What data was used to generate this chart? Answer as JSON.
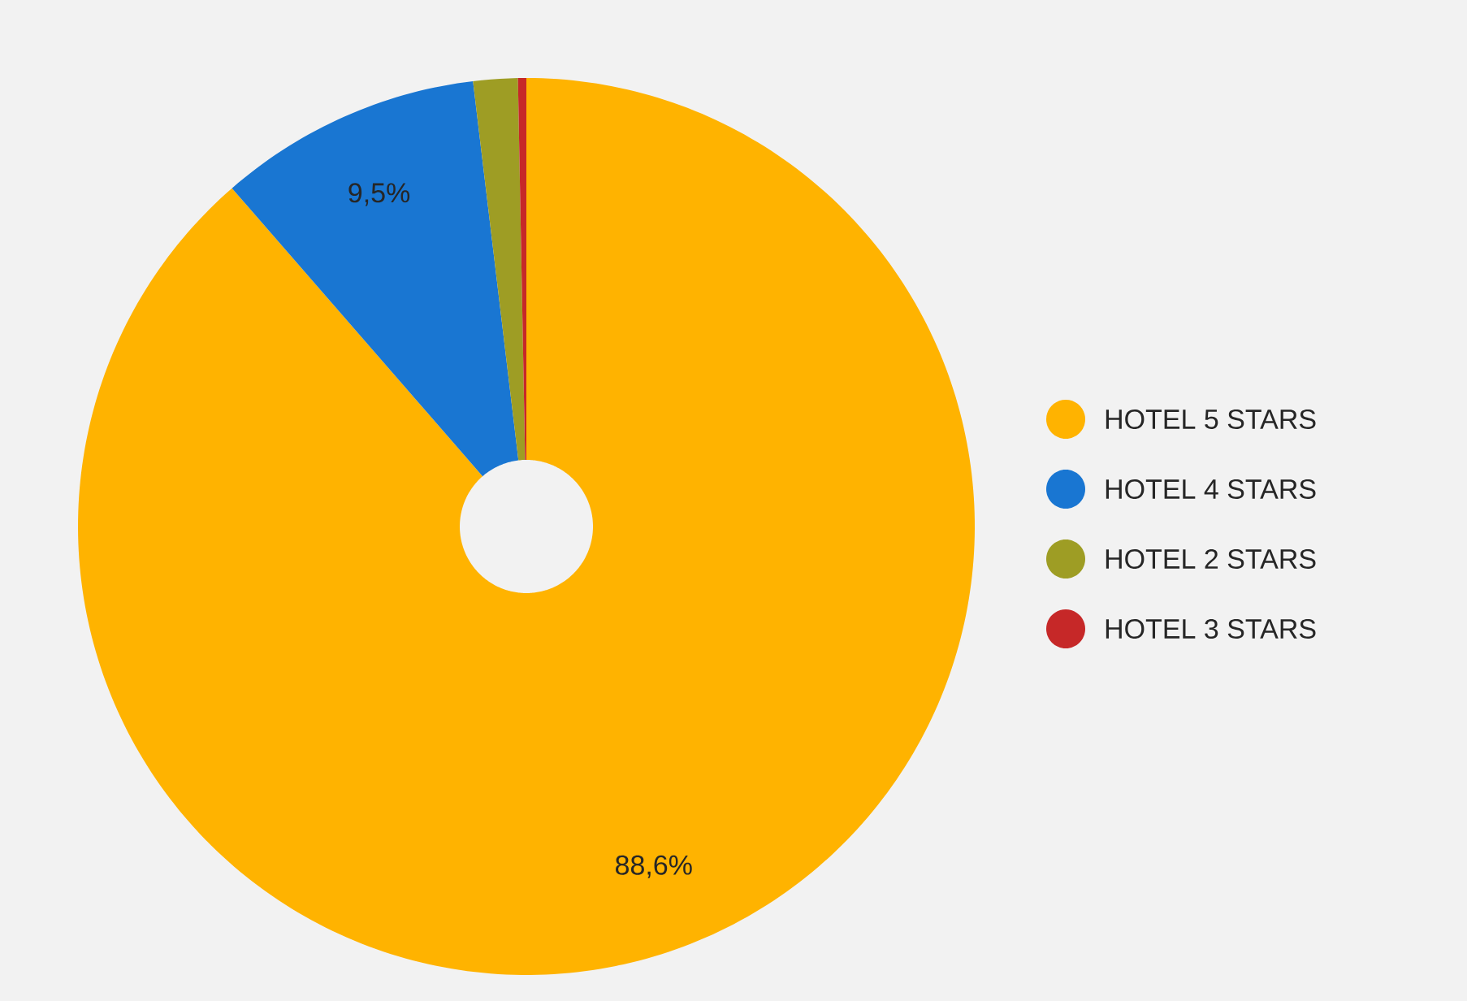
{
  "chart_data": {
    "type": "donut",
    "categories": [
      "HOTEL 5 STARS",
      "HOTEL 4 STARS",
      "HOTEL 2 STARS",
      "HOTEL 3 STARS"
    ],
    "values": [
      88.6,
      9.5,
      1.6,
      0.3
    ],
    "value_labels": [
      "88,6%",
      "9,5%",
      null,
      null
    ],
    "colors": [
      "#ffb300",
      "#1976d2",
      "#9e9d24",
      "#c62828"
    ],
    "legend": "right"
  }
}
